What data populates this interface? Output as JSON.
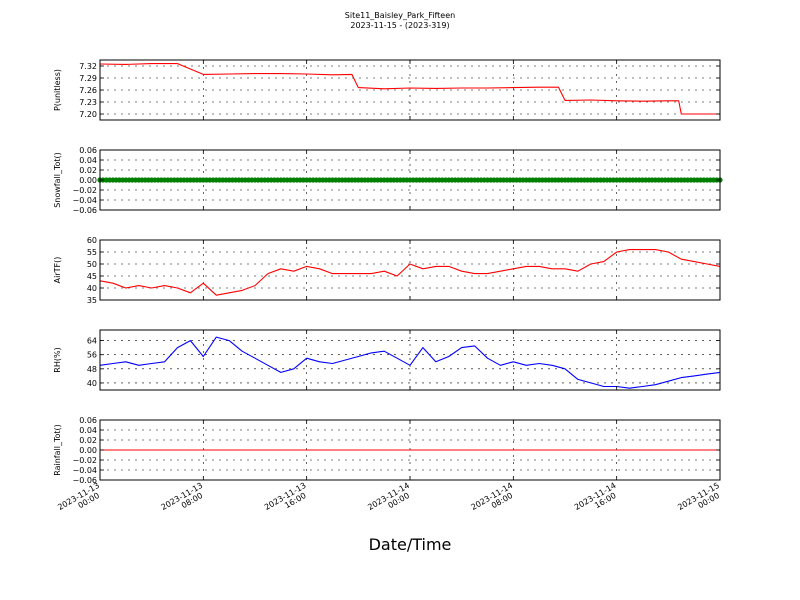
{
  "figure": {
    "title": "Site11_Baisley_Park_Fifteen",
    "subtitle": "2023-11-15 - (2023-319)",
    "xlabel": "Date/Time",
    "x_tick_labels": [
      [
        "2023-11-13",
        "00:00"
      ],
      [
        "2023-11-13",
        "08:00"
      ],
      [
        "2023-11-13",
        "16:00"
      ],
      [
        "2023-11-14",
        "00:00"
      ],
      [
        "2023-11-14",
        "08:00"
      ],
      [
        "2023-11-14",
        "16:00"
      ],
      [
        "2023-11-15",
        "00:00"
      ]
    ]
  },
  "chart_data": [
    {
      "type": "line",
      "ylabel": "P(unitless)",
      "color": "#ff0000",
      "ylim": [
        7.185,
        7.335
      ],
      "yticks": [
        7.2,
        7.23,
        7.26,
        7.29,
        7.32
      ],
      "ytick_labels": [
        "7.20",
        "7.23",
        "7.26",
        "7.29",
        "7.32"
      ],
      "x_hours": [
        0,
        2,
        4,
        6,
        8,
        10,
        12,
        14,
        16,
        18,
        19.5,
        20,
        22,
        24,
        26,
        28,
        30,
        32,
        34,
        35.5,
        36,
        38,
        40,
        42,
        44,
        44.8,
        45,
        48
      ],
      "values": [
        7.325,
        7.324,
        7.326,
        7.326,
        7.299,
        7.3,
        7.301,
        7.301,
        7.3,
        7.298,
        7.299,
        7.266,
        7.263,
        7.265,
        7.264,
        7.265,
        7.265,
        7.266,
        7.267,
        7.267,
        7.234,
        7.235,
        7.233,
        7.232,
        7.233,
        7.233,
        7.2,
        7.2
      ]
    },
    {
      "type": "scatter",
      "ylabel": "Snowfall_Tot()",
      "color": "#008000",
      "ylim": [
        -0.06,
        0.06
      ],
      "yticks": [
        -0.06,
        -0.04,
        -0.02,
        0.0,
        0.02,
        0.04,
        0.06
      ],
      "ytick_labels": [
        "−0.06",
        "−0.04",
        "−0.02",
        "0.00",
        "0.02",
        "0.04",
        "0.06"
      ],
      "x_range_hours": [
        0,
        48
      ],
      "constant_value": 0.0
    },
    {
      "type": "line",
      "ylabel": "AirTF()",
      "color": "#ff0000",
      "ylim": [
        35,
        60
      ],
      "yticks": [
        35,
        40,
        45,
        50,
        55,
        60
      ],
      "ytick_labels": [
        "35",
        "40",
        "45",
        "50",
        "55",
        "60"
      ],
      "x_hours": [
        0,
        1,
        2,
        3,
        4,
        5,
        6,
        7,
        8,
        9,
        10,
        11,
        12,
        13,
        14,
        15,
        16,
        17,
        18,
        19,
        20,
        21,
        22,
        23,
        24,
        25,
        26,
        27,
        28,
        29,
        30,
        31,
        32,
        33,
        34,
        35,
        36,
        37,
        38,
        39,
        40,
        41,
        42,
        43,
        44,
        45,
        46,
        47,
        48
      ],
      "values": [
        43,
        42,
        40,
        41,
        40,
        41,
        40,
        38,
        42,
        37,
        38,
        39,
        41,
        46,
        48,
        47,
        49,
        48,
        46,
        46,
        46,
        46,
        47,
        45,
        50,
        48,
        49,
        49,
        47,
        46,
        46,
        47,
        48,
        49,
        49,
        48,
        48,
        47,
        50,
        51,
        55,
        56,
        56,
        56,
        55,
        52,
        51,
        50,
        49
      ]
    },
    {
      "type": "line",
      "ylabel": "RH(%)",
      "color": "#0000ff",
      "ylim": [
        36,
        70
      ],
      "yticks": [
        40,
        48,
        56,
        64
      ],
      "ytick_labels": [
        "40",
        "48",
        "56",
        "64"
      ],
      "x_hours": [
        0,
        1,
        2,
        3,
        4,
        5,
        6,
        7,
        8,
        9,
        10,
        11,
        12,
        13,
        14,
        15,
        16,
        17,
        18,
        19,
        20,
        21,
        22,
        23,
        24,
        25,
        26,
        27,
        28,
        29,
        30,
        31,
        32,
        33,
        34,
        35,
        36,
        37,
        38,
        39,
        40,
        41,
        42,
        43,
        44,
        45,
        46,
        47,
        48
      ],
      "values": [
        50,
        51,
        52,
        50,
        51,
        52,
        60,
        64,
        55,
        66,
        64,
        58,
        54,
        50,
        46,
        48,
        54,
        52,
        51,
        53,
        55,
        57,
        58,
        54,
        50,
        60,
        52,
        55,
        60,
        61,
        54,
        50,
        52,
        50,
        51,
        50,
        48,
        42,
        40,
        38,
        38,
        37,
        38,
        39,
        41,
        43,
        44,
        45,
        46
      ]
    },
    {
      "type": "line",
      "ylabel": "Rainfall_Tot()",
      "color": "#ff0000",
      "ylim": [
        -0.06,
        0.06
      ],
      "yticks": [
        -0.06,
        -0.04,
        -0.02,
        0.0,
        0.02,
        0.04,
        0.06
      ],
      "ytick_labels": [
        "−0.06",
        "−0.04",
        "−0.02",
        "0.00",
        "0.02",
        "0.04",
        "0.06"
      ],
      "x_hours": [
        0,
        48
      ],
      "values": [
        0.0,
        0.0
      ]
    }
  ]
}
